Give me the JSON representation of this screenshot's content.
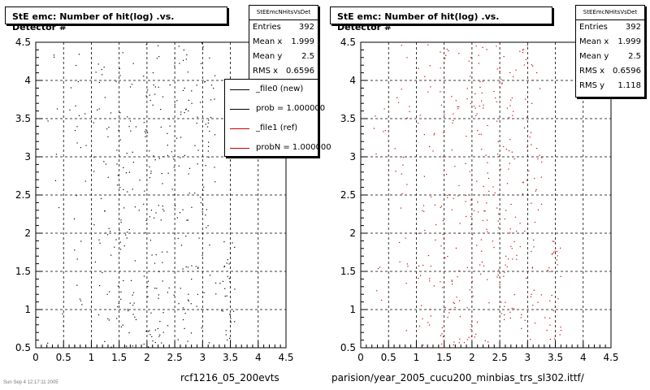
{
  "charts": [
    {
      "title": "StE emc: Number of hit(log) .vs. Detector #",
      "stats": {
        "header": "StEEmcNHitsVsDet",
        "rows": [
          {
            "label": "Entries",
            "value": "392"
          },
          {
            "label": "Mean x",
            "value": "1.999"
          },
          {
            "label": "Mean y",
            "value": "2.5"
          },
          {
            "label": "RMS x",
            "value": "0.6596"
          }
        ]
      },
      "legend": [
        {
          "label": "_file0 (new)",
          "color": "#000000"
        },
        {
          "label": "prob = 1.000000",
          "color": "#000000"
        },
        {
          "label": "_file1 (ref)",
          "color": "#cc0000"
        },
        {
          "label": "probN = 1.000000",
          "color": "#cc0000"
        }
      ],
      "caption": "rcf1216_05_200evts"
    },
    {
      "title": "StE emc: Number of hit(log) .vs. Detector #",
      "stats": {
        "header": "StEEmcNHitsVsDet",
        "rows": [
          {
            "label": "Entries",
            "value": "392"
          },
          {
            "label": "Mean x",
            "value": "1.999"
          },
          {
            "label": "Mean y",
            "value": "2.5"
          },
          {
            "label": "RMS x",
            "value": "0.6596"
          },
          {
            "label": "RMS y",
            "value": "1.118"
          }
        ]
      },
      "caption": "parision/year_2005_cucu200_minbias_trs_sl302.ittf/"
    }
  ],
  "footer": "Sun Sep 4 12:17:11 2005",
  "chart_data": [
    {
      "type": "scatter",
      "title": "StE emc: Number of hit(log) .vs. Detector #",
      "xlim": [
        0,
        4.5
      ],
      "ylim": [
        0.5,
        4.5
      ],
      "xticks": [
        "0",
        "0.5",
        "1",
        "1.5",
        "2",
        "2.5",
        "3",
        "3.5",
        "4",
        "4.5"
      ],
      "yticks": [
        "0.5",
        "1",
        "1.5",
        "2",
        "2.5",
        "3",
        "3.5",
        "4",
        "4.5"
      ],
      "grid": true,
      "legend_position": "top-right",
      "series": [
        {
          "name": "_file0 (new)",
          "color": "#000000",
          "columns": [
            {
              "x": [
                0.2,
                0.5
              ],
              "y": [
                0.5,
                4.5
              ],
              "count": 10
            },
            {
              "x": [
                0.6,
                0.9
              ],
              "y": [
                0.5,
                4.5
              ],
              "count": 24
            },
            {
              "x": [
                1.0,
                1.35
              ],
              "y": [
                0.5,
                4.5
              ],
              "count": 40
            },
            {
              "x": [
                1.4,
                1.8
              ],
              "y": [
                0.5,
                4.5
              ],
              "count": 68
            },
            {
              "x": [
                1.85,
                2.3
              ],
              "y": [
                0.5,
                4.5
              ],
              "count": 84
            },
            {
              "x": [
                2.35,
                2.8
              ],
              "y": [
                0.5,
                4.5
              ],
              "count": 76
            },
            {
              "x": [
                2.85,
                3.25
              ],
              "y": [
                0.5,
                4.5
              ],
              "count": 60
            },
            {
              "x": [
                3.3,
                3.6
              ],
              "y": [
                0.6,
                1.9
              ],
              "count": 30
            }
          ]
        }
      ]
    },
    {
      "type": "scatter",
      "title": "StE emc: Number of hit(log) .vs. Detector #",
      "xlim": [
        0,
        4.5
      ],
      "ylim": [
        0.5,
        4.5
      ],
      "xticks": [
        "0",
        "0.5",
        "1",
        "1.5",
        "2",
        "2.5",
        "3",
        "3.5",
        "4",
        "4.5"
      ],
      "yticks": [
        "0.5",
        "1",
        "1.5",
        "2",
        "2.5",
        "3",
        "3.5",
        "4",
        "4.5"
      ],
      "grid": true,
      "series": [
        {
          "name": "_file1 (ref)",
          "color": "#cc0000",
          "columns": [
            {
              "x": [
                0.2,
                0.5
              ],
              "y": [
                0.5,
                4.5
              ],
              "count": 10
            },
            {
              "x": [
                0.6,
                0.9
              ],
              "y": [
                0.5,
                4.5
              ],
              "count": 24
            },
            {
              "x": [
                1.0,
                1.35
              ],
              "y": [
                0.5,
                4.5
              ],
              "count": 40
            },
            {
              "x": [
                1.4,
                1.8
              ],
              "y": [
                0.5,
                4.5
              ],
              "count": 68
            },
            {
              "x": [
                1.85,
                2.3
              ],
              "y": [
                0.5,
                4.5
              ],
              "count": 84
            },
            {
              "x": [
                2.35,
                2.8
              ],
              "y": [
                0.5,
                4.5
              ],
              "count": 76
            },
            {
              "x": [
                2.85,
                3.25
              ],
              "y": [
                0.5,
                4.5
              ],
              "count": 60
            },
            {
              "x": [
                3.3,
                3.6
              ],
              "y": [
                0.6,
                1.9
              ],
              "count": 30
            }
          ]
        }
      ]
    }
  ]
}
